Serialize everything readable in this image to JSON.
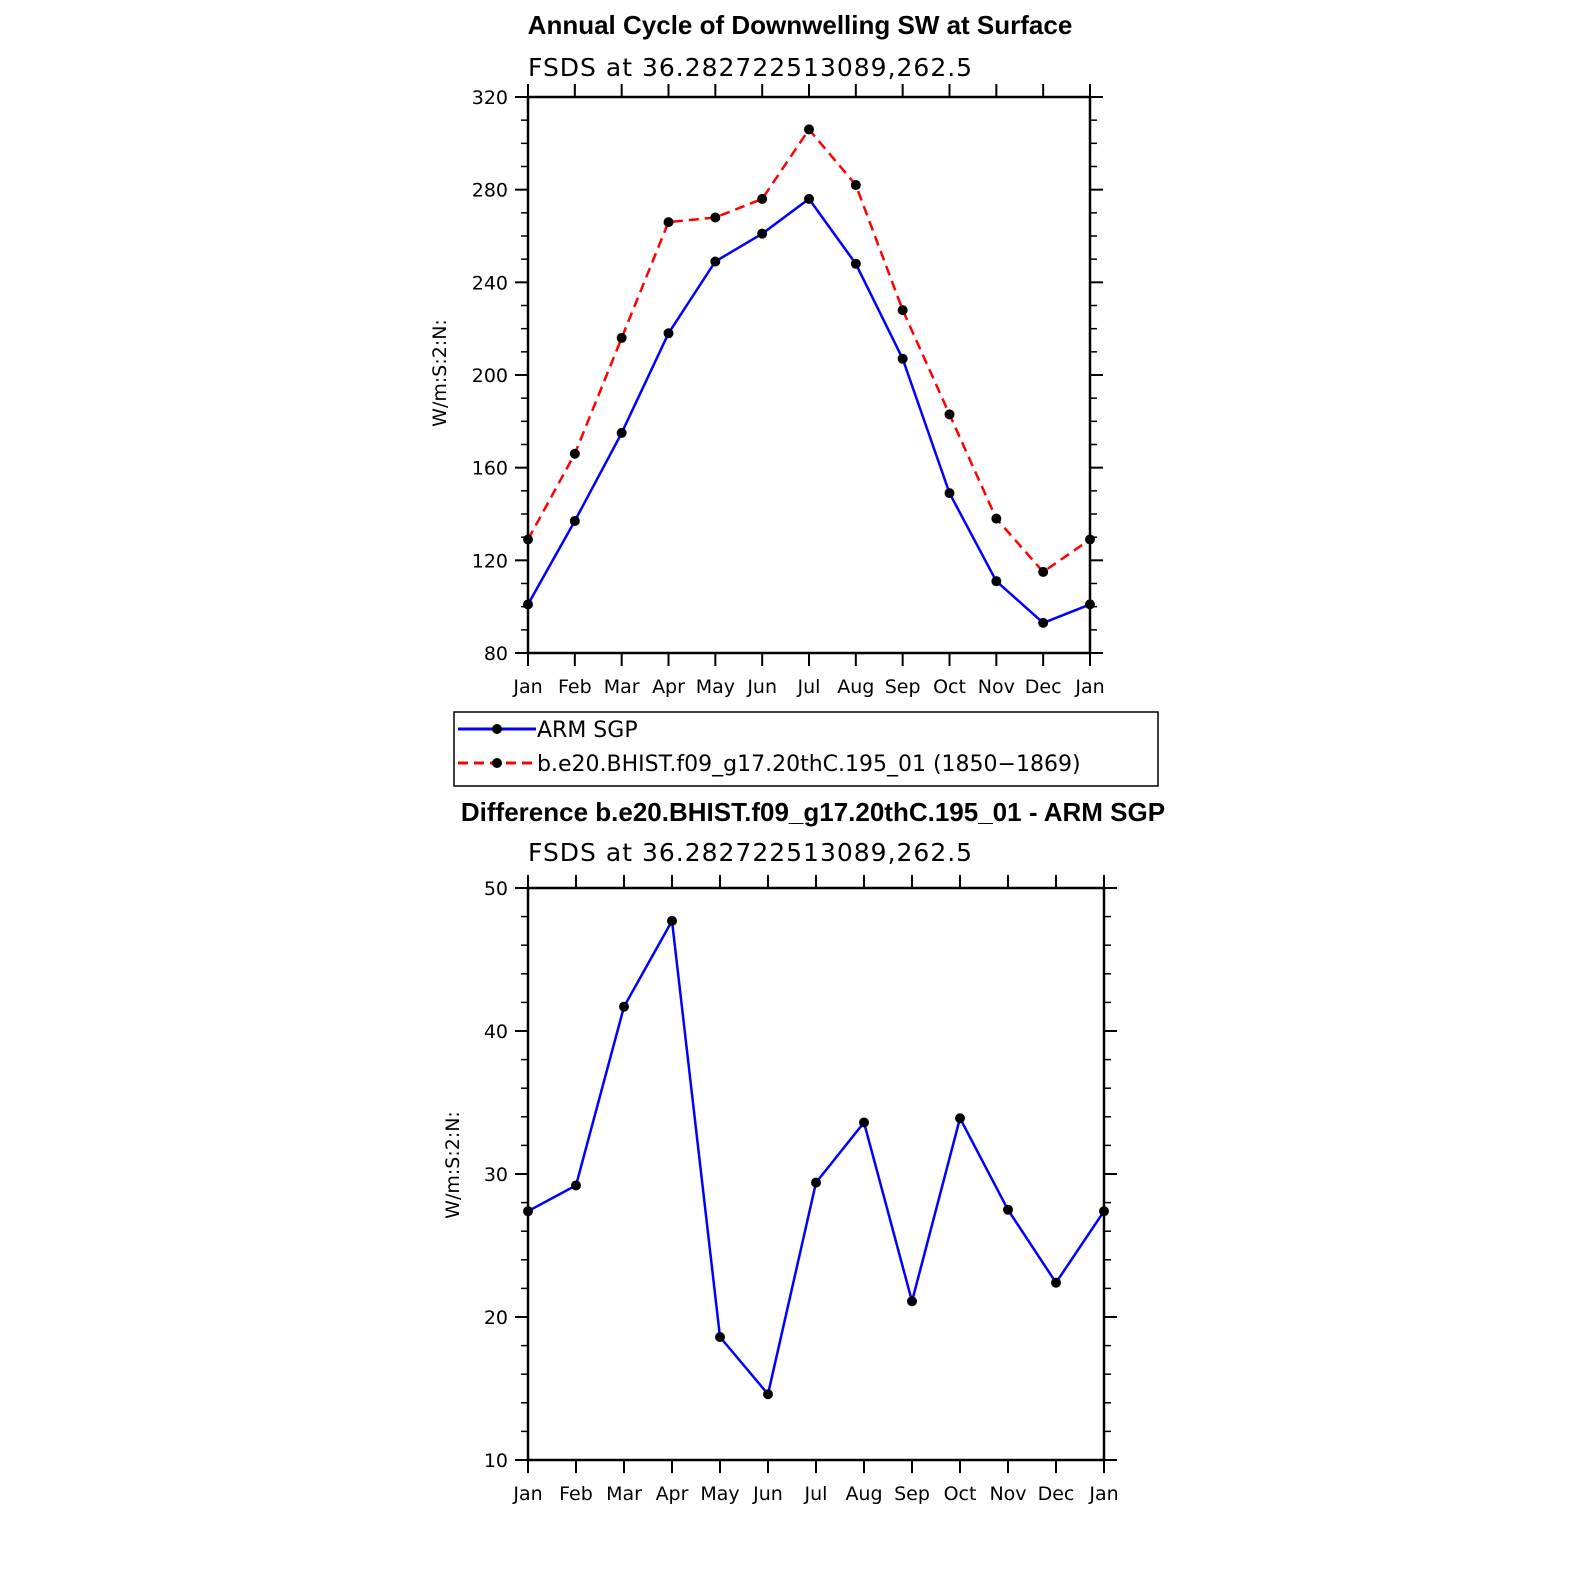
{
  "chart_data": [
    {
      "type": "line",
      "title": "Annual Cycle of Downwelling SW at Surface",
      "subtitle": "FSDS at 36.282722513089,262.5",
      "ylabel": "W/m:S:2:N:",
      "xlabel": "",
      "categories": [
        "Jan",
        "Feb",
        "Mar",
        "Apr",
        "May",
        "Jun",
        "Jul",
        "Aug",
        "Sep",
        "Oct",
        "Nov",
        "Dec",
        "Jan"
      ],
      "yticks": [
        "80",
        "120",
        "160",
        "200",
        "240",
        "280",
        "320"
      ],
      "ylim": [
        80,
        320
      ],
      "grid": false,
      "legend_position": "bottom",
      "series": [
        {
          "name": "ARM SGP",
          "color": "#0000ff",
          "dash": "solid",
          "marker": "dot",
          "values": [
            101,
            137,
            175,
            218,
            249,
            261,
            276,
            248,
            207,
            149,
            111,
            93,
            101
          ]
        },
        {
          "name": "b.e20.BHIST.f09_g17.20thC.195_01 (1850−1869)",
          "color": "#ff0000",
          "dash": "dashed",
          "marker": "dot",
          "values": [
            129,
            166,
            216,
            266,
            268,
            276,
            306,
            282,
            228,
            183,
            138,
            115,
            129
          ]
        }
      ]
    },
    {
      "type": "line",
      "title": "Difference b.e20.BHIST.f09_g17.20thC.195_01 - ARM SGP",
      "subtitle": "FSDS at 36.282722513089,262.5",
      "ylabel": "W/m:S:2:N:",
      "xlabel": "",
      "categories": [
        "Jan",
        "Feb",
        "Mar",
        "Apr",
        "May",
        "Jun",
        "Jul",
        "Aug",
        "Sep",
        "Oct",
        "Nov",
        "Dec",
        "Jan"
      ],
      "yticks": [
        "10",
        "20",
        "30",
        "40",
        "50"
      ],
      "ylim": [
        10,
        50
      ],
      "grid": false,
      "series": [
        {
          "color": "#0000ff",
          "dash": "solid",
          "marker": "dot",
          "values": [
            27.4,
            29.2,
            41.7,
            47.7,
            18.6,
            14.6,
            29.4,
            33.6,
            21.1,
            33.9,
            27.5,
            22.4,
            27.4
          ]
        }
      ]
    }
  ]
}
